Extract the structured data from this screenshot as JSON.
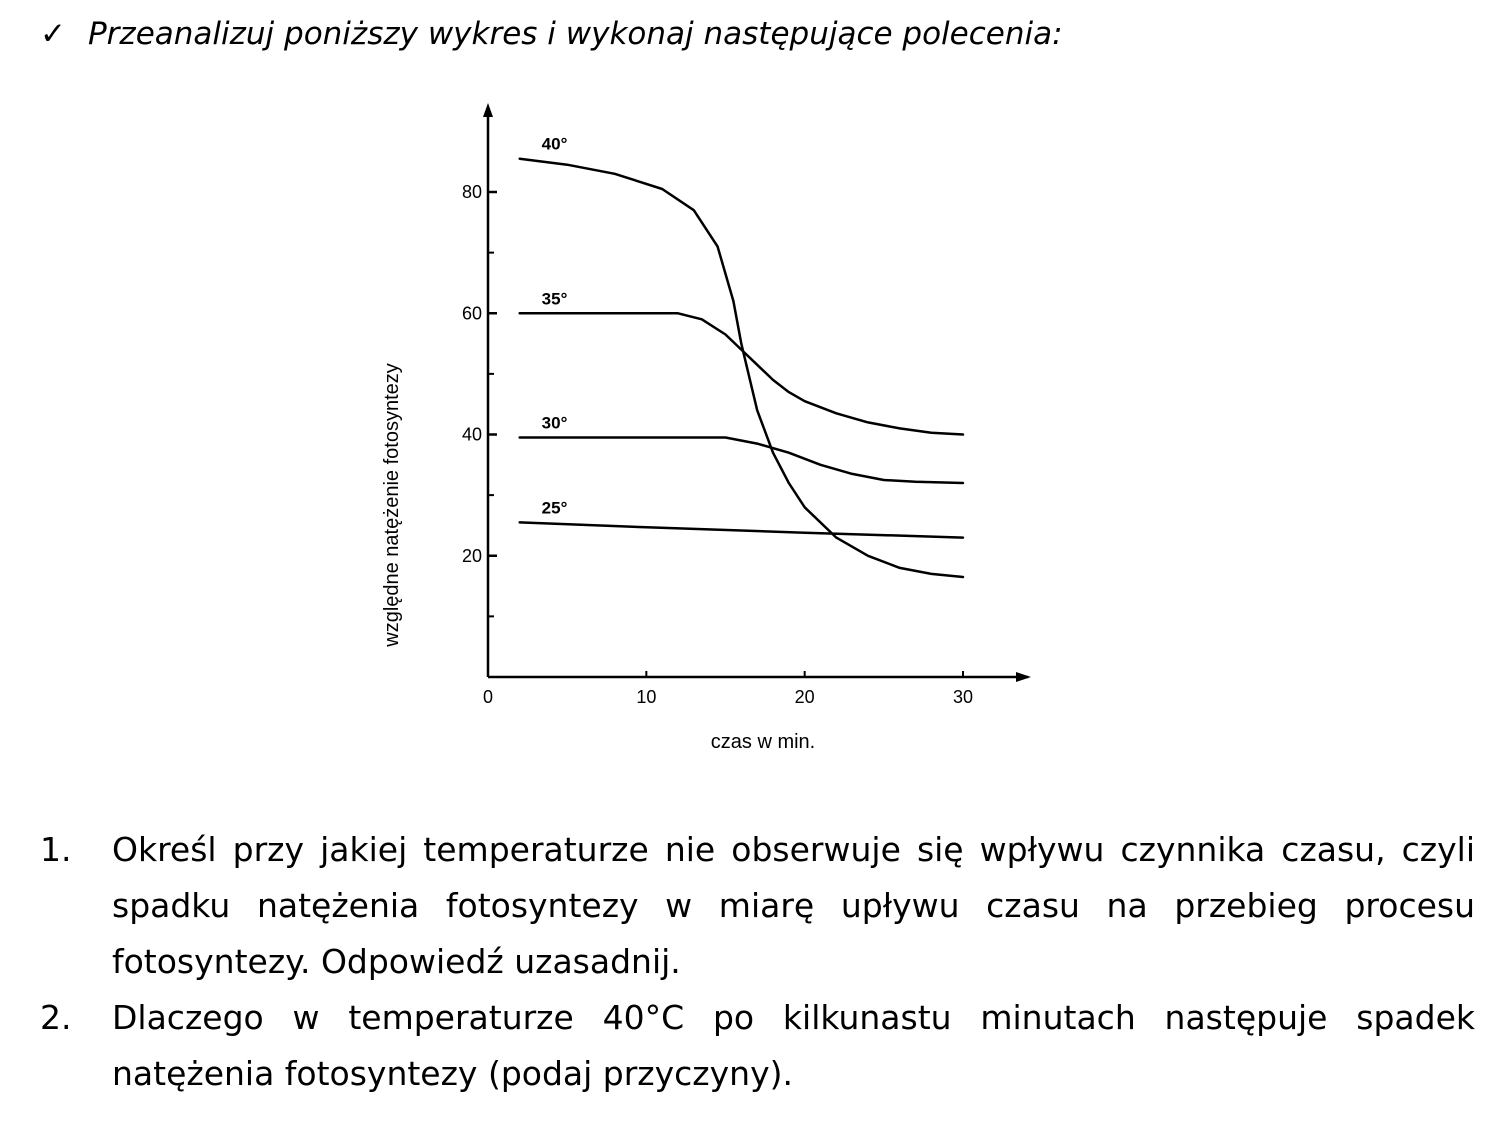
{
  "instruction": {
    "check_icon": "check-icon",
    "text": "Przeanalizuj poniższy wykres i wykonaj następujące polecenia:"
  },
  "chart_data": {
    "type": "line",
    "title": "",
    "xlabel": "czas w min.",
    "ylabel": "względne natężenie fotosyntezy",
    "xlim": [
      0,
      35
    ],
    "ylim": [
      0,
      92
    ],
    "xticks": [
      "0",
      "10",
      "20",
      "30"
    ],
    "yticks": [
      "20",
      "40",
      "60",
      "80"
    ],
    "series": [
      {
        "name": "40°",
        "x": [
          2,
          5,
          8,
          11,
          13,
          14.5,
          15.5,
          16,
          17,
          18,
          19,
          20,
          22,
          24,
          26,
          28,
          30
        ],
        "y": [
          85.5,
          84.5,
          83,
          80.5,
          77,
          71,
          62,
          55,
          44,
          37,
          32,
          28,
          23,
          20,
          18,
          17,
          16.5
        ]
      },
      {
        "name": "35°",
        "x": [
          2,
          12,
          13.5,
          15,
          16,
          17,
          18,
          19,
          20,
          22,
          24,
          26,
          28,
          30
        ],
        "y": [
          60,
          60,
          59,
          56.5,
          54,
          51.5,
          49,
          47,
          45.5,
          43.5,
          42,
          41,
          40.3,
          40
        ]
      },
      {
        "name": "30°",
        "x": [
          2,
          12,
          15,
          17,
          19,
          21,
          23,
          25,
          27,
          30
        ],
        "y": [
          39.5,
          39.5,
          39.5,
          38.5,
          37,
          35,
          33.5,
          32.5,
          32.2,
          32
        ]
      },
      {
        "name": "25°",
        "x": [
          2,
          10,
          20,
          30
        ],
        "y": [
          25.5,
          24.7,
          23.8,
          23
        ]
      }
    ]
  },
  "questions": [
    {
      "number": "1.",
      "text": "Określ przy jakiej temperaturze nie obserwuje się wpływu czynnika czasu, czyli spadku natężenia fotosyntezy w miarę upływu czasu na przebieg procesu fotosyntezy. Odpowiedź uzasadnij."
    },
    {
      "number": "2.",
      "text": "Dlaczego w temperaturze 40°C po kilkunastu minutach następuje spadek natężenia fotosyntezy (podaj przyczyny)."
    }
  ]
}
